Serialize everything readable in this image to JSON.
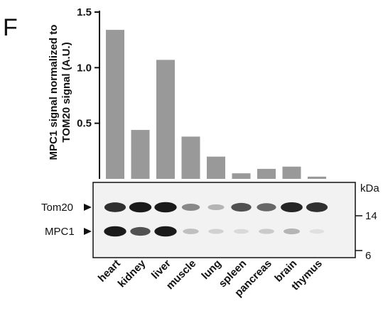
{
  "panel_label": "F",
  "chart_data": {
    "type": "bar",
    "ylabel_lines": [
      "MPC1 signal normalized to",
      "TOM20 signal (A.U.)"
    ],
    "categories": [
      "heart",
      "kidney",
      "liver",
      "muscle",
      "lung",
      "spleen",
      "pancreas",
      "brain",
      "thymus"
    ],
    "values": [
      1.34,
      0.44,
      1.07,
      0.38,
      0.2,
      0.05,
      0.09,
      0.11,
      0.02
    ],
    "ylim": [
      0,
      1.5
    ],
    "yticks": [
      "0.5",
      "1.0",
      "1.5"
    ],
    "bar_color": "#999999",
    "grid": false
  },
  "blot": {
    "bands": [
      {
        "label": "Tom20",
        "intensities": [
          0.85,
          0.95,
          0.95,
          0.45,
          0.25,
          0.7,
          0.6,
          0.9,
          0.85
        ]
      },
      {
        "label": "MPC1",
        "intensities": [
          0.95,
          0.7,
          0.95,
          0.2,
          0.12,
          0.08,
          0.15,
          0.25,
          0.05
        ]
      }
    ],
    "kda_label": "kDa",
    "markers": [
      "14",
      "6"
    ]
  }
}
